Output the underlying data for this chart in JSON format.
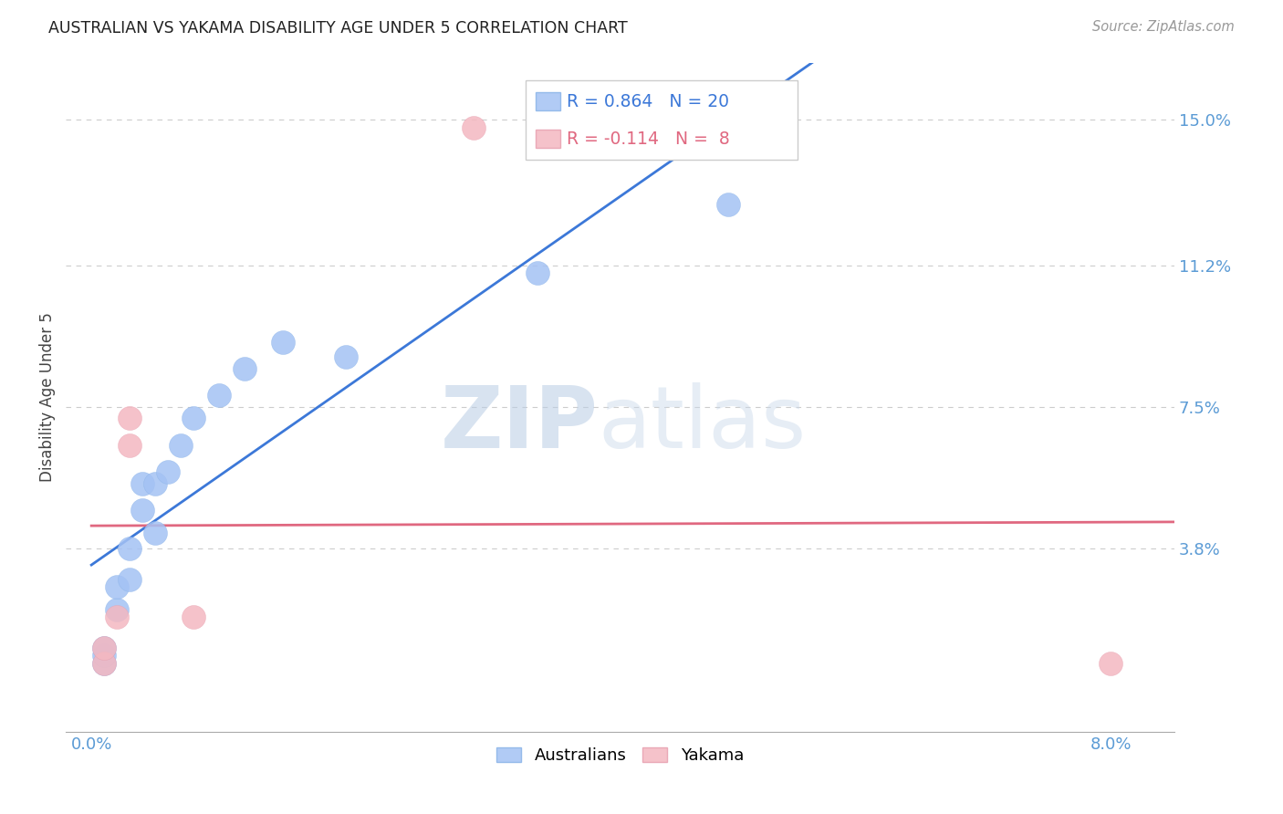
{
  "title": "AUSTRALIAN VS YAKAMA DISABILITY AGE UNDER 5 CORRELATION CHART",
  "source": "Source: ZipAtlas.com",
  "ylabel": "Disability Age Under 5",
  "xlabel": "",
  "yticks": [
    0.0,
    0.038,
    0.075,
    0.112,
    0.15
  ],
  "ytick_labels": [
    "",
    "3.8%",
    "7.5%",
    "11.2%",
    "15.0%"
  ],
  "xticks": [
    0.0,
    0.02,
    0.04,
    0.06,
    0.08
  ],
  "xtick_labels": [
    "0.0%",
    "",
    "",
    "",
    "8.0%"
  ],
  "xlim": [
    -0.002,
    0.085
  ],
  "ylim": [
    -0.01,
    0.165
  ],
  "blue_color": "#a4c2f4",
  "pink_color": "#f4b8c1",
  "blue_line_color": "#3c78d8",
  "pink_line_color": "#e06880",
  "watermark_zip": "ZIP",
  "watermark_atlas": "atlas",
  "legend_R_blue": "R = 0.864",
  "legend_N_blue": "N = 20",
  "legend_R_pink": "R = -0.114",
  "legend_N_pink": "N =  8",
  "australians_x": [
    0.001,
    0.001,
    0.001,
    0.002,
    0.002,
    0.003,
    0.003,
    0.004,
    0.004,
    0.005,
    0.005,
    0.006,
    0.007,
    0.008,
    0.01,
    0.012,
    0.015,
    0.02,
    0.035,
    0.05
  ],
  "australians_y": [
    0.008,
    0.01,
    0.012,
    0.022,
    0.028,
    0.03,
    0.038,
    0.048,
    0.055,
    0.042,
    0.055,
    0.058,
    0.065,
    0.072,
    0.078,
    0.085,
    0.092,
    0.088,
    0.11,
    0.128
  ],
  "yakama_x": [
    0.001,
    0.001,
    0.002,
    0.003,
    0.003,
    0.008,
    0.03,
    0.08
  ],
  "yakama_y": [
    0.008,
    0.012,
    0.02,
    0.065,
    0.072,
    0.02,
    0.148,
    0.008
  ]
}
